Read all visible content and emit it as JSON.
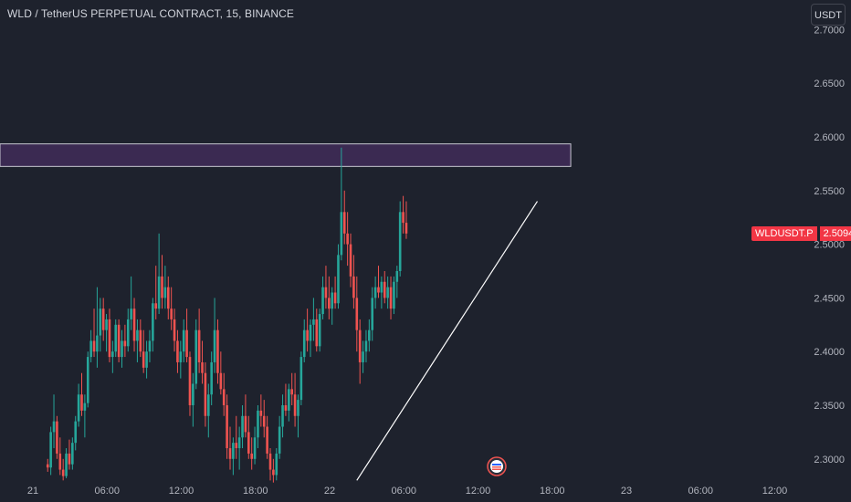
{
  "header": {
    "title": "WLD / TetherUS PERPETUAL CONTRACT, 15, BINANCE",
    "currency_button": "USDT"
  },
  "price_tag": {
    "symbol": "WLDUSDT.P",
    "value": "2.5094"
  },
  "colors": {
    "background": "#1e222d",
    "up": "#26a69a",
    "down": "#ef5350",
    "zone_fill": "#3b2a52",
    "zone_border": "#c7c7d1",
    "trendline": "#ffffff",
    "axis_text": "#b2b5be",
    "price_tag": "#f23645"
  },
  "chart_data": {
    "type": "candlestick",
    "y_axis": {
      "min": 2.28,
      "max": 2.71,
      "ticks": [
        2.7,
        2.65,
        2.6,
        2.55,
        2.5,
        2.45,
        2.4,
        2.35,
        2.3
      ],
      "tick_labels": [
        "2.7000",
        "2.6500",
        "2.6000",
        "2.5500",
        "2.5000",
        "2.4500",
        "2.4000",
        "2.3500",
        "2.3000"
      ]
    },
    "x_axis": {
      "start_hours": 0,
      "end_hours": 60,
      "ticks": [
        0,
        6,
        12,
        18,
        24,
        30,
        36,
        42,
        48,
        54,
        60
      ],
      "tick_labels": [
        "21",
        "06:00",
        "12:00",
        "18:00",
        "22",
        "06:00",
        "12:00",
        "18:00",
        "23",
        "06:00",
        "12:00"
      ]
    },
    "horizontal_zone": {
      "y_low": 2.5725,
      "y_high": 2.5935,
      "x_end_hours": 43.5
    },
    "trendline": {
      "from": [
        26.2,
        2.28
      ],
      "to": [
        40.8,
        2.54
      ]
    },
    "candles": {
      "interval_minutes": 15,
      "first_candle_hour": 1.2,
      "ohlc": [
        [
          2.295,
          2.3,
          2.288,
          2.292
        ],
        [
          2.292,
          2.33,
          2.285,
          2.325
        ],
        [
          2.325,
          2.36,
          2.31,
          2.335
        ],
        [
          2.335,
          2.34,
          2.3,
          2.305
        ],
        [
          2.305,
          2.32,
          2.285,
          2.29
        ],
        [
          2.29,
          2.3,
          2.28,
          2.284
        ],
        [
          2.284,
          2.31,
          2.282,
          2.305
        ],
        [
          2.305,
          2.318,
          2.29,
          2.295
        ],
        [
          2.295,
          2.32,
          2.29,
          2.315
        ],
        [
          2.315,
          2.34,
          2.308,
          2.335
        ],
        [
          2.335,
          2.37,
          2.33,
          2.36
        ],
        [
          2.36,
          2.38,
          2.34,
          2.345
        ],
        [
          2.345,
          2.36,
          2.32,
          2.352
        ],
        [
          2.352,
          2.4,
          2.348,
          2.395
        ],
        [
          2.395,
          2.42,
          2.39,
          2.41
        ],
        [
          2.41,
          2.44,
          2.395,
          2.4
        ],
        [
          2.4,
          2.46,
          2.385,
          2.415
        ],
        [
          2.415,
          2.45,
          2.4,
          2.44
        ],
        [
          2.44,
          2.45,
          2.41,
          2.42
        ],
        [
          2.42,
          2.435,
          2.4,
          2.43
        ],
        [
          2.43,
          2.44,
          2.39,
          2.395
        ],
        [
          2.395,
          2.41,
          2.38,
          2.4
        ],
        [
          2.4,
          2.43,
          2.395,
          2.425
        ],
        [
          2.425,
          2.43,
          2.39,
          2.395
        ],
        [
          2.395,
          2.42,
          2.385,
          2.41
        ],
        [
          2.41,
          2.425,
          2.395,
          2.405
        ],
        [
          2.405,
          2.44,
          2.4,
          2.43
        ],
        [
          2.43,
          2.47,
          2.42,
          2.44
        ],
        [
          2.44,
          2.45,
          2.4,
          2.41
        ],
        [
          2.41,
          2.43,
          2.39,
          2.42
        ],
        [
          2.42,
          2.43,
          2.395,
          2.4
        ],
        [
          2.4,
          2.42,
          2.38,
          2.385
        ],
        [
          2.385,
          2.41,
          2.375,
          2.4
        ],
        [
          2.4,
          2.42,
          2.39,
          2.41
        ],
        [
          2.41,
          2.45,
          2.4,
          2.445
        ],
        [
          2.445,
          2.48,
          2.43,
          2.44
        ],
        [
          2.44,
          2.51,
          2.435,
          2.47
        ],
        [
          2.47,
          2.49,
          2.44,
          2.45
        ],
        [
          2.45,
          2.48,
          2.44,
          2.46
        ],
        [
          2.46,
          2.47,
          2.43,
          2.44
        ],
        [
          2.44,
          2.46,
          2.42,
          2.43
        ],
        [
          2.43,
          2.44,
          2.4,
          2.41
        ],
        [
          2.41,
          2.42,
          2.38,
          2.39
        ],
        [
          2.39,
          2.41,
          2.375,
          2.4
        ],
        [
          2.4,
          2.43,
          2.39,
          2.42
        ],
        [
          2.42,
          2.44,
          2.39,
          2.395
        ],
        [
          2.395,
          2.4,
          2.34,
          2.35
        ],
        [
          2.35,
          2.38,
          2.33,
          2.37
        ],
        [
          2.37,
          2.43,
          2.365,
          2.42
        ],
        [
          2.42,
          2.44,
          2.38,
          2.39
        ],
        [
          2.39,
          2.41,
          2.37,
          2.38
        ],
        [
          2.38,
          2.39,
          2.33,
          2.34
        ],
        [
          2.34,
          2.37,
          2.32,
          2.36
        ],
        [
          2.36,
          2.4,
          2.35,
          2.39
        ],
        [
          2.39,
          2.45,
          2.38,
          2.42
        ],
        [
          2.42,
          2.43,
          2.37,
          2.38
        ],
        [
          2.38,
          2.4,
          2.36,
          2.365
        ],
        [
          2.365,
          2.38,
          2.34,
          2.35
        ],
        [
          2.35,
          2.36,
          2.3,
          2.31
        ],
        [
          2.31,
          2.33,
          2.29,
          2.3
        ],
        [
          2.3,
          2.32,
          2.285,
          2.315
        ],
        [
          2.315,
          2.34,
          2.3,
          2.31
        ],
        [
          2.31,
          2.33,
          2.29,
          2.32
        ],
        [
          2.32,
          2.35,
          2.31,
          2.34
        ],
        [
          2.34,
          2.36,
          2.32,
          2.325
        ],
        [
          2.325,
          2.34,
          2.3,
          2.305
        ],
        [
          2.305,
          2.32,
          2.29,
          2.3
        ],
        [
          2.3,
          2.33,
          2.295,
          2.32
        ],
        [
          2.32,
          2.35,
          2.31,
          2.345
        ],
        [
          2.345,
          2.36,
          2.33,
          2.34
        ],
        [
          2.34,
          2.355,
          2.32,
          2.33
        ],
        [
          2.33,
          2.34,
          2.3,
          2.305
        ],
        [
          2.305,
          2.31,
          2.28,
          2.29
        ],
        [
          2.29,
          2.3,
          2.278,
          2.285
        ],
        [
          2.285,
          2.31,
          2.28,
          2.305
        ],
        [
          2.305,
          2.34,
          2.3,
          2.33
        ],
        [
          2.33,
          2.36,
          2.32,
          2.35
        ],
        [
          2.35,
          2.37,
          2.34,
          2.345
        ],
        [
          2.345,
          2.37,
          2.335,
          2.365
        ],
        [
          2.365,
          2.38,
          2.35,
          2.36
        ],
        [
          2.36,
          2.38,
          2.33,
          2.34
        ],
        [
          2.34,
          2.36,
          2.32,
          2.355
        ],
        [
          2.355,
          2.4,
          2.35,
          2.395
        ],
        [
          2.395,
          2.43,
          2.39,
          2.42
        ],
        [
          2.42,
          2.44,
          2.4,
          2.41
        ],
        [
          2.41,
          2.43,
          2.395,
          2.425
        ],
        [
          2.425,
          2.45,
          2.41,
          2.43
        ],
        [
          2.43,
          2.44,
          2.4,
          2.405
        ],
        [
          2.405,
          2.44,
          2.4,
          2.435
        ],
        [
          2.435,
          2.47,
          2.43,
          2.46
        ],
        [
          2.46,
          2.48,
          2.44,
          2.45
        ],
        [
          2.45,
          2.47,
          2.43,
          2.44
        ],
        [
          2.44,
          2.46,
          2.425,
          2.455
        ],
        [
          2.455,
          2.47,
          2.44,
          2.445
        ],
        [
          2.445,
          2.5,
          2.44,
          2.49
        ],
        [
          2.49,
          2.59,
          2.485,
          2.53
        ],
        [
          2.53,
          2.55,
          2.5,
          2.51
        ],
        [
          2.51,
          2.53,
          2.48,
          2.5
        ],
        [
          2.5,
          2.51,
          2.46,
          2.47
        ],
        [
          2.47,
          2.49,
          2.44,
          2.45
        ],
        [
          2.45,
          2.47,
          2.4,
          2.42
        ],
        [
          2.42,
          2.43,
          2.37,
          2.39
        ],
        [
          2.39,
          2.41,
          2.38,
          2.4
        ],
        [
          2.4,
          2.42,
          2.39,
          2.41
        ],
        [
          2.41,
          2.43,
          2.4,
          2.42
        ],
        [
          2.42,
          2.46,
          2.41,
          2.45
        ],
        [
          2.45,
          2.47,
          2.44,
          2.46
        ],
        [
          2.46,
          2.48,
          2.45,
          2.455
        ],
        [
          2.455,
          2.47,
          2.44,
          2.465
        ],
        [
          2.465,
          2.475,
          2.445,
          2.45
        ],
        [
          2.45,
          2.47,
          2.44,
          2.46
        ],
        [
          2.46,
          2.47,
          2.43,
          2.44
        ],
        [
          2.44,
          2.47,
          2.435,
          2.465
        ],
        [
          2.465,
          2.48,
          2.45,
          2.475
        ],
        [
          2.475,
          2.54,
          2.47,
          2.53
        ],
        [
          2.53,
          2.545,
          2.51,
          2.52
        ],
        [
          2.52,
          2.54,
          2.505,
          2.51
        ]
      ]
    }
  }
}
